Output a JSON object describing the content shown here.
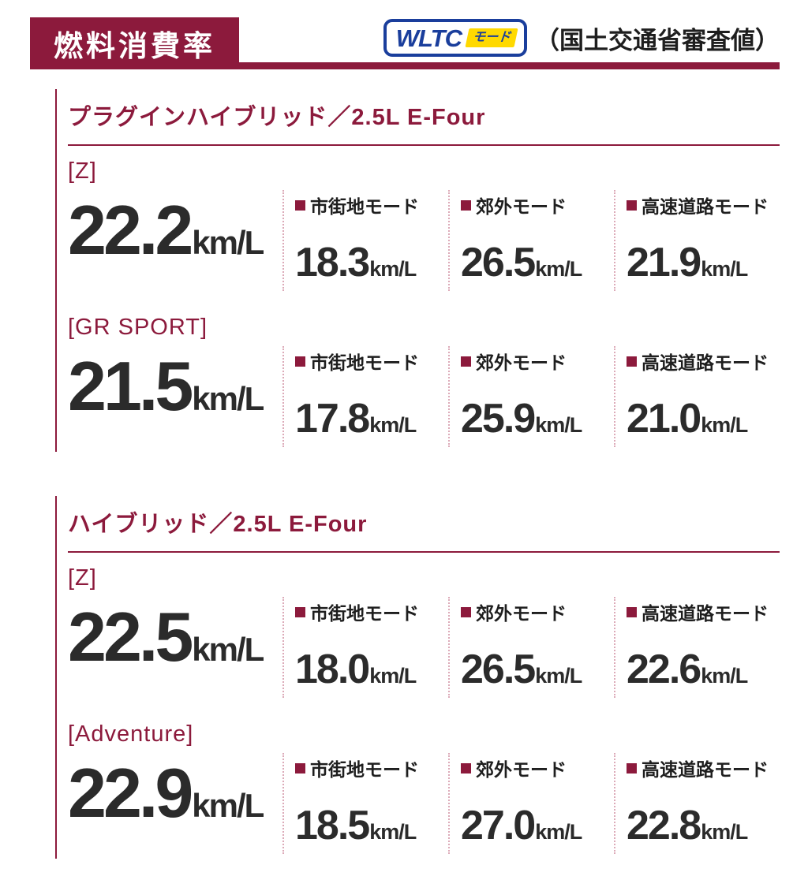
{
  "header": {
    "title": "燃料消費率",
    "wltc_brand": "WLTC",
    "wltc_mode_label": "モード",
    "note": "（国土交通省審査値）"
  },
  "unit": "km/L",
  "sections": [
    {
      "title": "プラグインハイブリッド／2.5L E-Four",
      "grades": [
        {
          "name": "[Z]",
          "total": "22.2",
          "modes": [
            {
              "label": "市街地モード",
              "value": "18.3"
            },
            {
              "label": "郊外モード",
              "value": "26.5"
            },
            {
              "label": "高速道路モード",
              "value": "21.9"
            }
          ]
        },
        {
          "name": "[GR SPORT]",
          "total": "21.5",
          "modes": [
            {
              "label": "市街地モード",
              "value": "17.8"
            },
            {
              "label": "郊外モード",
              "value": "25.9"
            },
            {
              "label": "高速道路モード",
              "value": "21.0"
            }
          ]
        }
      ]
    },
    {
      "title": "ハイブリッド／2.5L E-Four",
      "grades": [
        {
          "name": "[Z]",
          "total": "22.5",
          "modes": [
            {
              "label": "市街地モード",
              "value": "18.0"
            },
            {
              "label": "郊外モード",
              "value": "26.5"
            },
            {
              "label": "高速道路モード",
              "value": "22.6"
            }
          ]
        },
        {
          "name": "[Adventure]",
          "total": "22.9",
          "modes": [
            {
              "label": "市街地モード",
              "value": "18.5"
            },
            {
              "label": "郊外モード",
              "value": "27.0"
            },
            {
              "label": "高速道路モード",
              "value": "22.8"
            }
          ]
        }
      ]
    }
  ],
  "colors": {
    "accent": "#8c1a3c",
    "text": "#2b2b2b",
    "wltc_blue": "#1a3e9c",
    "wltc_yellow": "#ffd900",
    "dotted_separator": "#dcaab8"
  }
}
